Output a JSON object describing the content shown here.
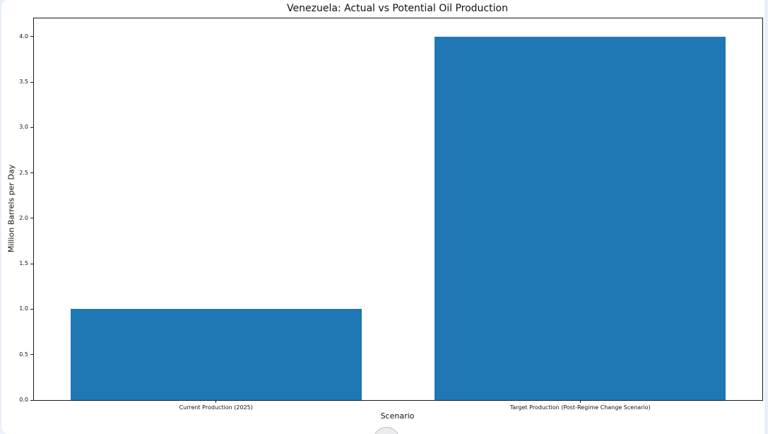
{
  "page": {
    "background_color": "#eaf0f8",
    "card_background": "#ffffff"
  },
  "chart_data": {
    "type": "bar",
    "title": "Venezuela: Actual vs Potential Oil Production",
    "xlabel": "Scenario",
    "ylabel": "Million Barrels per Day",
    "categories": [
      "Current Production (2025)",
      "Target Production (Post-Regime Change Scenario)"
    ],
    "values": [
      1.0,
      4.0
    ],
    "bar_color": "#1f77b4",
    "ylim": [
      0,
      4.2
    ],
    "xlim": [
      -0.5,
      1.5
    ],
    "yticks": [
      0.0,
      0.5,
      1.0,
      1.5,
      2.0,
      2.5,
      3.0,
      3.5,
      4.0
    ],
    "ytick_label_format": "one_decimal",
    "bar_width_fraction": 0.8,
    "grid": false,
    "legend": "none"
  }
}
